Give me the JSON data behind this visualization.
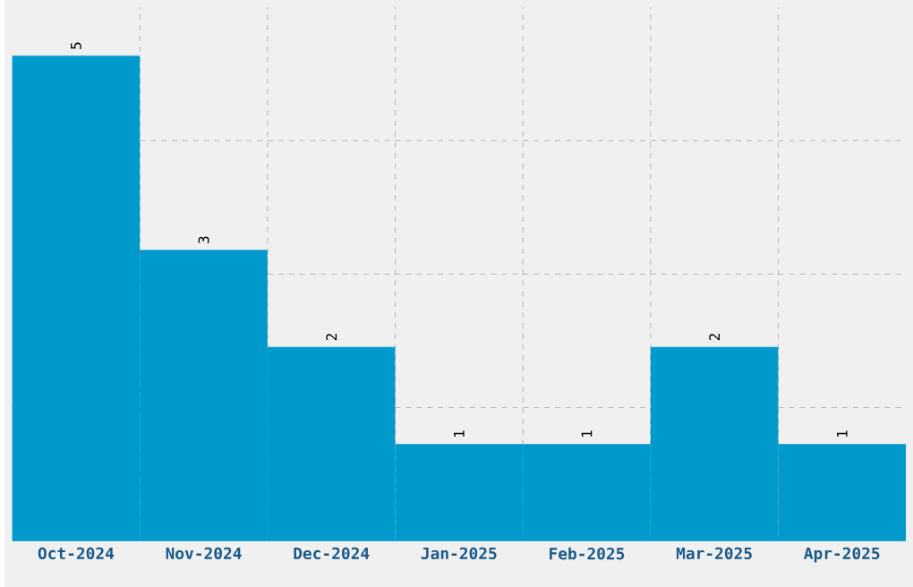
{
  "chart_data": {
    "type": "bar",
    "categories": [
      "Oct-2024",
      "Nov-2024",
      "Dec-2024",
      "Jan-2025",
      "Feb-2025",
      "Mar-2025",
      "Apr-2025"
    ],
    "values": [
      5,
      3,
      2,
      1,
      1,
      2,
      1
    ],
    "color": "#0099cc",
    "ylim": [
      0,
      5.5
    ],
    "yticks": [
      {
        "value": 1.375,
        "label": null
      },
      {
        "value": 2.75,
        "label": null
      },
      {
        "value": 4.125,
        "label": null
      }
    ],
    "grid": true,
    "data_labels": true,
    "tick_labels": "x"
  }
}
